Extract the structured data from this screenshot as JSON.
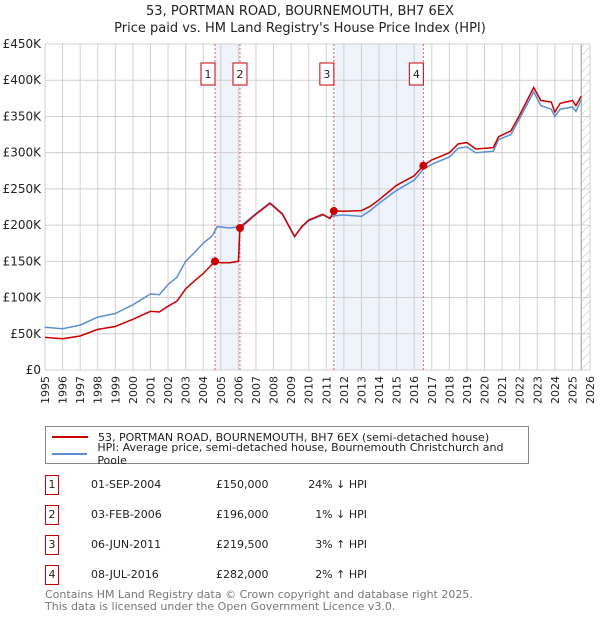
{
  "chart_data": {
    "type": "line",
    "title": "53, PORTMAN ROAD, BOURNEMOUTH, BH7 6EX",
    "subtitle": "Price paid vs. HM Land Registry's House Price Index (HPI)",
    "xlim": [
      1995,
      2026
    ],
    "ylim": [
      0,
      450000
    ],
    "y_ticks": [
      {
        "v": 0,
        "l": "£0"
      },
      {
        "v": 50000,
        "l": "£50K"
      },
      {
        "v": 100000,
        "l": "£100K"
      },
      {
        "v": 150000,
        "l": "£150K"
      },
      {
        "v": 200000,
        "l": "£200K"
      },
      {
        "v": 250000,
        "l": "£250K"
      },
      {
        "v": 300000,
        "l": "£300K"
      },
      {
        "v": 350000,
        "l": "£350K"
      },
      {
        "v": 400000,
        "l": "£400K"
      },
      {
        "v": 450000,
        "l": "£450K"
      }
    ],
    "x_ticks": [
      "1995",
      "1996",
      "1997",
      "1998",
      "1999",
      "2000",
      "2001",
      "2002",
      "2003",
      "2004",
      "2005",
      "2006",
      "2007",
      "2008",
      "2009",
      "2010",
      "2011",
      "2012",
      "2013",
      "2014",
      "2015",
      "2016",
      "2017",
      "2018",
      "2019",
      "2020",
      "2021",
      "2022",
      "2023",
      "2024",
      "2025",
      "2026"
    ],
    "shaded_ranges": [
      [
        2004.67,
        2006.09
      ],
      [
        2011.43,
        2016.52
      ]
    ],
    "hatch_from": 2025.5,
    "series": [
      {
        "name": "53, PORTMAN ROAD, BOURNEMOUTH, BH7 6EX (semi-detached house)",
        "color": "#cc0000",
        "x": [
          1995,
          1996,
          1997,
          1998,
          1999,
          2000,
          2001,
          2001.5,
          2002,
          2002.5,
          2003,
          2003.5,
          2004,
          2004.67,
          2005,
          2005.5,
          2006,
          2006.09,
          2007,
          2007.8,
          2008.5,
          2009.2,
          2009.6,
          2010,
          2010.8,
          2011.2,
          2011.43,
          2012,
          2013,
          2013.5,
          2014,
          2015,
          2016,
          2016.52,
          2017,
          2018,
          2018.5,
          2019,
          2019.5,
          2020.5,
          2020.8,
          2021.5,
          2022,
          2022.8,
          2023.2,
          2023.8,
          2024,
          2024.3,
          2025,
          2025.2,
          2025.5
        ],
        "y": [
          45000,
          43000,
          47000,
          56000,
          60000,
          70000,
          81000,
          80000,
          88000,
          95000,
          112000,
          123000,
          133000,
          150000,
          148000,
          148000,
          150000,
          196000,
          215000,
          230000,
          215000,
          184000,
          198000,
          207000,
          215000,
          209000,
          219500,
          219000,
          220000,
          226000,
          235000,
          255000,
          268000,
          282000,
          290000,
          300000,
          312000,
          314000,
          305000,
          307000,
          322000,
          330000,
          352000,
          390000,
          372000,
          370000,
          356000,
          368000,
          372000,
          365000,
          378000
        ]
      },
      {
        "name": "HPI: Average price, semi-detached house, Bournemouth Christchurch and Poole",
        "color": "#5b8fd4",
        "x": [
          1995,
          1996,
          1997,
          1998,
          1999,
          2000,
          2001,
          2001.5,
          2002,
          2002.5,
          2003,
          2003.5,
          2004,
          2004.5,
          2004.8,
          2005.5,
          2006.09,
          2007,
          2007.8,
          2008.5,
          2009.2,
          2009.6,
          2010,
          2010.8,
          2011.2,
          2011.43,
          2012,
          2013,
          2013.5,
          2014,
          2015,
          2016,
          2016.52,
          2017,
          2018,
          2018.5,
          2019,
          2019.5,
          2020.5,
          2020.8,
          2021.5,
          2022,
          2022.8,
          2023.2,
          2023.8,
          2024,
          2024.3,
          2025,
          2025.2,
          2025.5
        ],
        "y": [
          59000,
          57000,
          62000,
          73000,
          78000,
          90000,
          105000,
          104000,
          118000,
          128000,
          150000,
          162000,
          175000,
          185000,
          198000,
          196000,
          198000,
          216000,
          231000,
          216000,
          185000,
          197000,
          206000,
          214000,
          210000,
          213000,
          214000,
          212000,
          220000,
          230000,
          248000,
          262000,
          277000,
          284000,
          294000,
          306000,
          308000,
          300000,
          302000,
          318000,
          325000,
          347000,
          384000,
          365000,
          360000,
          350000,
          360000,
          363000,
          357000,
          373000
        ]
      }
    ],
    "markers": [
      {
        "label": "1",
        "x": 2004.67,
        "y": 150000
      },
      {
        "label": "2",
        "x": 2006.09,
        "y": 196000
      },
      {
        "label": "3",
        "x": 2011.43,
        "y": 219500
      },
      {
        "label": "4",
        "x": 2016.52,
        "y": 282000
      }
    ]
  },
  "legend": {
    "red": "53, PORTMAN ROAD, BOURNEMOUTH, BH7 6EX (semi-detached house)",
    "blue": "HPI: Average price, semi-detached house, Bournemouth Christchurch and Poole"
  },
  "transactions": [
    {
      "n": "1",
      "date": "01-SEP-2004",
      "price": "£150,000",
      "hpi": "24% ↓ HPI"
    },
    {
      "n": "2",
      "date": "03-FEB-2006",
      "price": "£196,000",
      "hpi": "1% ↓ HPI"
    },
    {
      "n": "3",
      "date": "06-JUN-2011",
      "price": "£219,500",
      "hpi": "3% ↑ HPI"
    },
    {
      "n": "4",
      "date": "08-JUL-2016",
      "price": "£282,000",
      "hpi": "2% ↑ HPI"
    }
  ],
  "footer": {
    "line1": "Contains HM Land Registry data © Crown copyright and database right 2025.",
    "line2": "This data is licensed under the Open Government Licence v3.0."
  }
}
